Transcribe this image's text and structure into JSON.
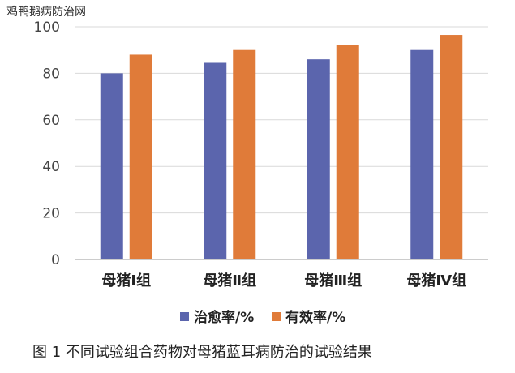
{
  "watermark": "鸡鸭鹅病防治网",
  "caption": "图 1 不同试验组合药物对母猪蓝耳病防治的试验结果",
  "chart_data": {
    "type": "bar",
    "categories": [
      "母猪Ⅰ组",
      "母猪Ⅱ组",
      "母猪Ⅲ组",
      "母猪Ⅳ组"
    ],
    "series": [
      {
        "name": "治愈率/%",
        "color": "#5B65AD",
        "values": [
          80,
          84.5,
          86,
          90
        ]
      },
      {
        "name": "有效率/%",
        "color": "#E07B39",
        "values": [
          88,
          90,
          92,
          96.5
        ]
      }
    ],
    "yticks": [
      0,
      20,
      40,
      60,
      80,
      100
    ],
    "ylim": [
      0,
      100
    ],
    "grid": true,
    "legend": "bottom"
  }
}
